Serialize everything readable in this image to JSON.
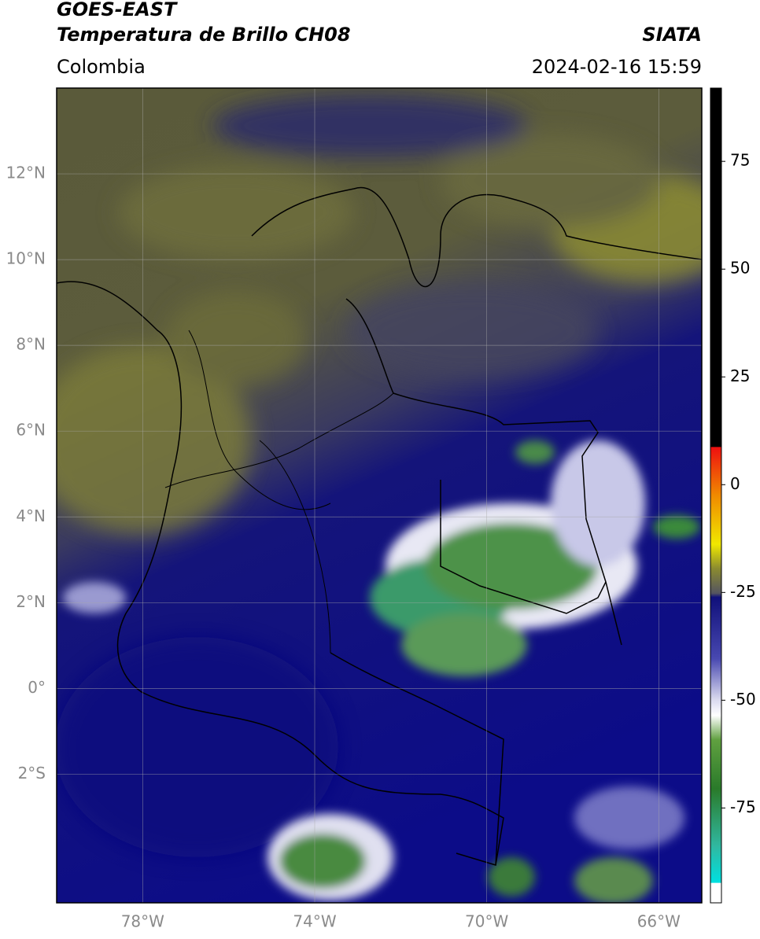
{
  "header": {
    "satellite": "GOES-EAST",
    "product": "Temperatura de Brillo CH08",
    "source": "SIATA",
    "region": "Colombia",
    "datetime": "2024-02-16 15:59"
  },
  "map": {
    "lat_range": [
      -5,
      14
    ],
    "lon_range": [
      -80,
      -65
    ],
    "lat_ticks": [
      {
        "value": 12,
        "label": "12°N"
      },
      {
        "value": 10,
        "label": "10°N"
      },
      {
        "value": 8,
        "label": "8°N"
      },
      {
        "value": 6,
        "label": "6°N"
      },
      {
        "value": 4,
        "label": "4°N"
      },
      {
        "value": 2,
        "label": "2°N"
      },
      {
        "value": 0,
        "label": "0°"
      },
      {
        "value": -2,
        "label": "2°S"
      }
    ],
    "lon_ticks": [
      {
        "value": -78,
        "label": "78°W"
      },
      {
        "value": -74,
        "label": "74°W"
      },
      {
        "value": -70,
        "label": "70°W"
      },
      {
        "value": -66,
        "label": "66°W"
      }
    ]
  },
  "colorbar": {
    "lim": [
      -97,
      92
    ],
    "ticks": [
      75,
      50,
      25,
      0,
      -25,
      -50,
      -75
    ]
  }
}
